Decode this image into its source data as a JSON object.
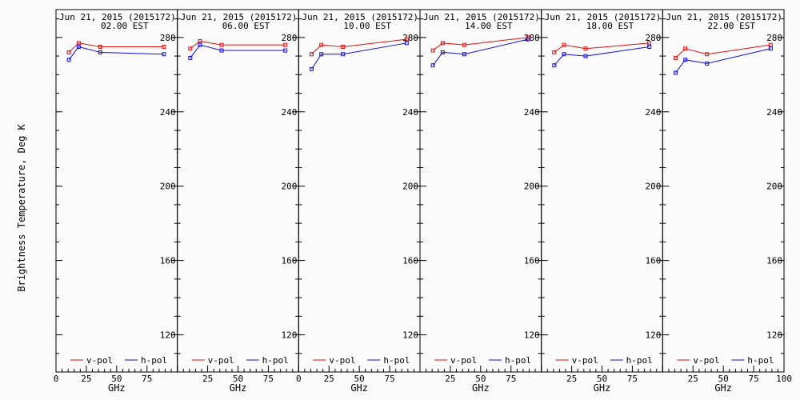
{
  "ylabel": "Brightness Temperature, Deg K",
  "xlabel": "GHz",
  "colors": {
    "v": "#e01010",
    "h": "#1010e0"
  },
  "chart_data": [
    {
      "type": "line",
      "title_line1": "Jun 21, 2015 (2015172)",
      "title_line2": "02.00 EST",
      "xlim": [
        0,
        100
      ],
      "ylim": [
        100,
        295
      ],
      "yticks": [
        120,
        160,
        200,
        240,
        280
      ],
      "xticks": [
        "0",
        "25",
        "50",
        "75"
      ],
      "x": [
        10.65,
        18.7,
        36.5,
        89.0
      ],
      "series": [
        {
          "name": "v-pol",
          "values": [
            272,
            277,
            275,
            275
          ]
        },
        {
          "name": "h-pol",
          "values": [
            268,
            275,
            272,
            271
          ]
        }
      ]
    },
    {
      "type": "line",
      "title_line1": "Jun 21, 2015 (2015172)",
      "title_line2": "06.00 EST",
      "xlim": [
        0,
        100
      ],
      "ylim": [
        100,
        295
      ],
      "yticks": [
        120,
        160,
        200,
        240,
        280
      ],
      "xticks": [
        "25",
        "50",
        "75"
      ],
      "x": [
        10.65,
        18.7,
        36.5,
        89.0
      ],
      "series": [
        {
          "name": "v-pol",
          "values": [
            274,
            278,
            276,
            276
          ]
        },
        {
          "name": "h-pol",
          "values": [
            269,
            276,
            273,
            273
          ]
        }
      ]
    },
    {
      "type": "line",
      "title_line1": "Jun 21, 2015 (2015172)",
      "title_line2": "10.00 EST",
      "xlim": [
        0,
        100
      ],
      "ylim": [
        100,
        295
      ],
      "yticks": [
        120,
        160,
        200,
        240,
        280
      ],
      "xticks": [
        "0",
        "25",
        "50",
        "75"
      ],
      "x": [
        10.65,
        18.7,
        36.5,
        89.0
      ],
      "series": [
        {
          "name": "v-pol",
          "values": [
            271,
            276,
            275,
            279
          ]
        },
        {
          "name": "h-pol",
          "values": [
            263,
            271,
            271,
            277
          ]
        }
      ]
    },
    {
      "type": "line",
      "title_line1": "Jun 21, 2015 (2015172)",
      "title_line2": "14.00 EST",
      "xlim": [
        0,
        100
      ],
      "ylim": [
        100,
        295
      ],
      "yticks": [
        120,
        160,
        200,
        240,
        280
      ],
      "xticks": [
        "25",
        "50",
        "75"
      ],
      "x": [
        10.65,
        18.7,
        36.5,
        89.0
      ],
      "series": [
        {
          "name": "v-pol",
          "values": [
            273,
            277,
            276,
            280
          ]
        },
        {
          "name": "h-pol",
          "values": [
            265,
            272,
            271,
            279
          ]
        }
      ]
    },
    {
      "type": "line",
      "title_line1": "Jun 21, 2015 (2015172)",
      "title_line2": "18.00 EST",
      "xlim": [
        0,
        100
      ],
      "ylim": [
        100,
        295
      ],
      "yticks": [
        120,
        160,
        200,
        240,
        280
      ],
      "xticks": [
        "25",
        "50",
        "75"
      ],
      "x": [
        10.65,
        18.7,
        36.5,
        89.0
      ],
      "series": [
        {
          "name": "v-pol",
          "values": [
            272,
            276,
            274,
            277
          ]
        },
        {
          "name": "h-pol",
          "values": [
            265,
            271,
            270,
            275
          ]
        }
      ]
    },
    {
      "type": "line",
      "title_line1": "Jun 21, 2015 (2015172)",
      "title_line2": "22.00 EST",
      "xlim": [
        0,
        100
      ],
      "ylim": [
        100,
        295
      ],
      "yticks": [
        120,
        160,
        200,
        240,
        280
      ],
      "xticks": [
        "25",
        "50",
        "75",
        "100"
      ],
      "x": [
        10.65,
        18.7,
        36.5,
        89.0
      ],
      "series": [
        {
          "name": "v-pol",
          "values": [
            269,
            274,
            271,
            276
          ]
        },
        {
          "name": "h-pol",
          "values": [
            261,
            268,
            266,
            274
          ]
        }
      ]
    }
  ]
}
